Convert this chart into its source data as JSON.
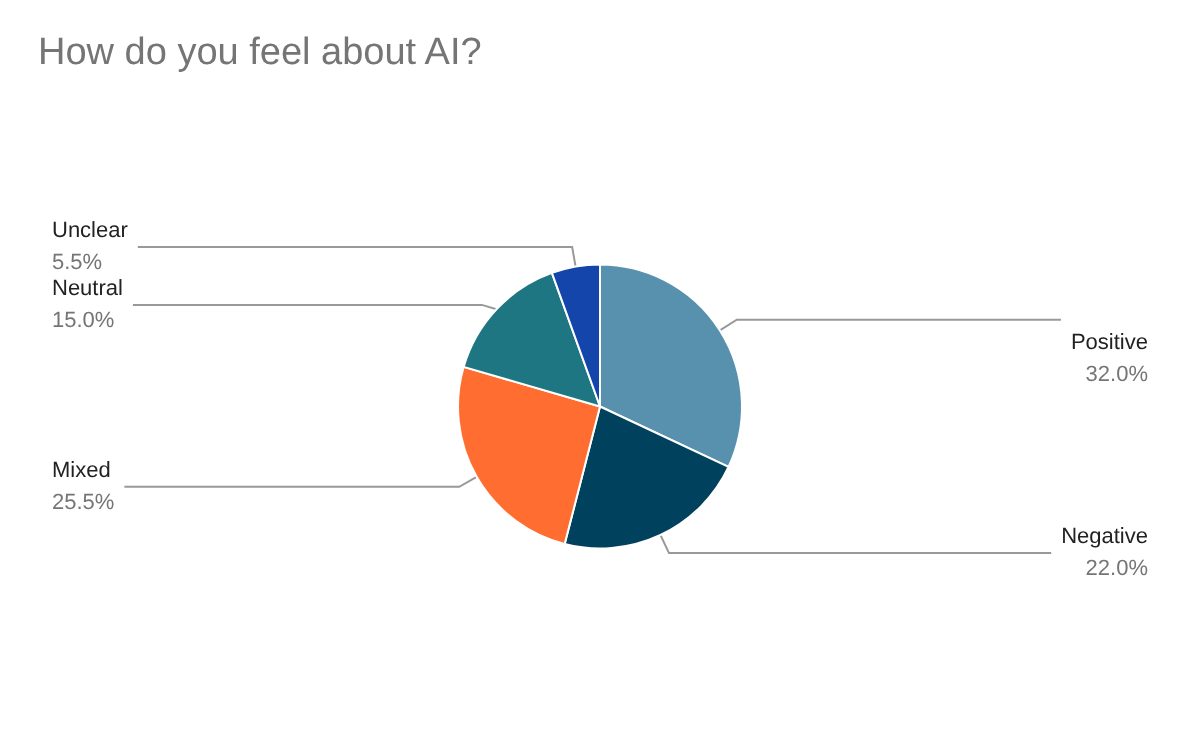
{
  "chart_data": {
    "type": "pie",
    "title": "How do you feel about AI?",
    "categories": [
      "Positive",
      "Negative",
      "Mixed",
      "Neutral",
      "Unclear"
    ],
    "values": [
      32.0,
      22.0,
      25.5,
      15.0,
      5.5
    ],
    "value_labels": [
      "32.0%",
      "22.0%",
      "25.5%",
      "15.0%",
      "5.5%"
    ],
    "colors": [
      "#5891ae",
      "#00415d",
      "#ff6d31",
      "#1e7683",
      "#1445ab"
    ],
    "legend": false
  }
}
